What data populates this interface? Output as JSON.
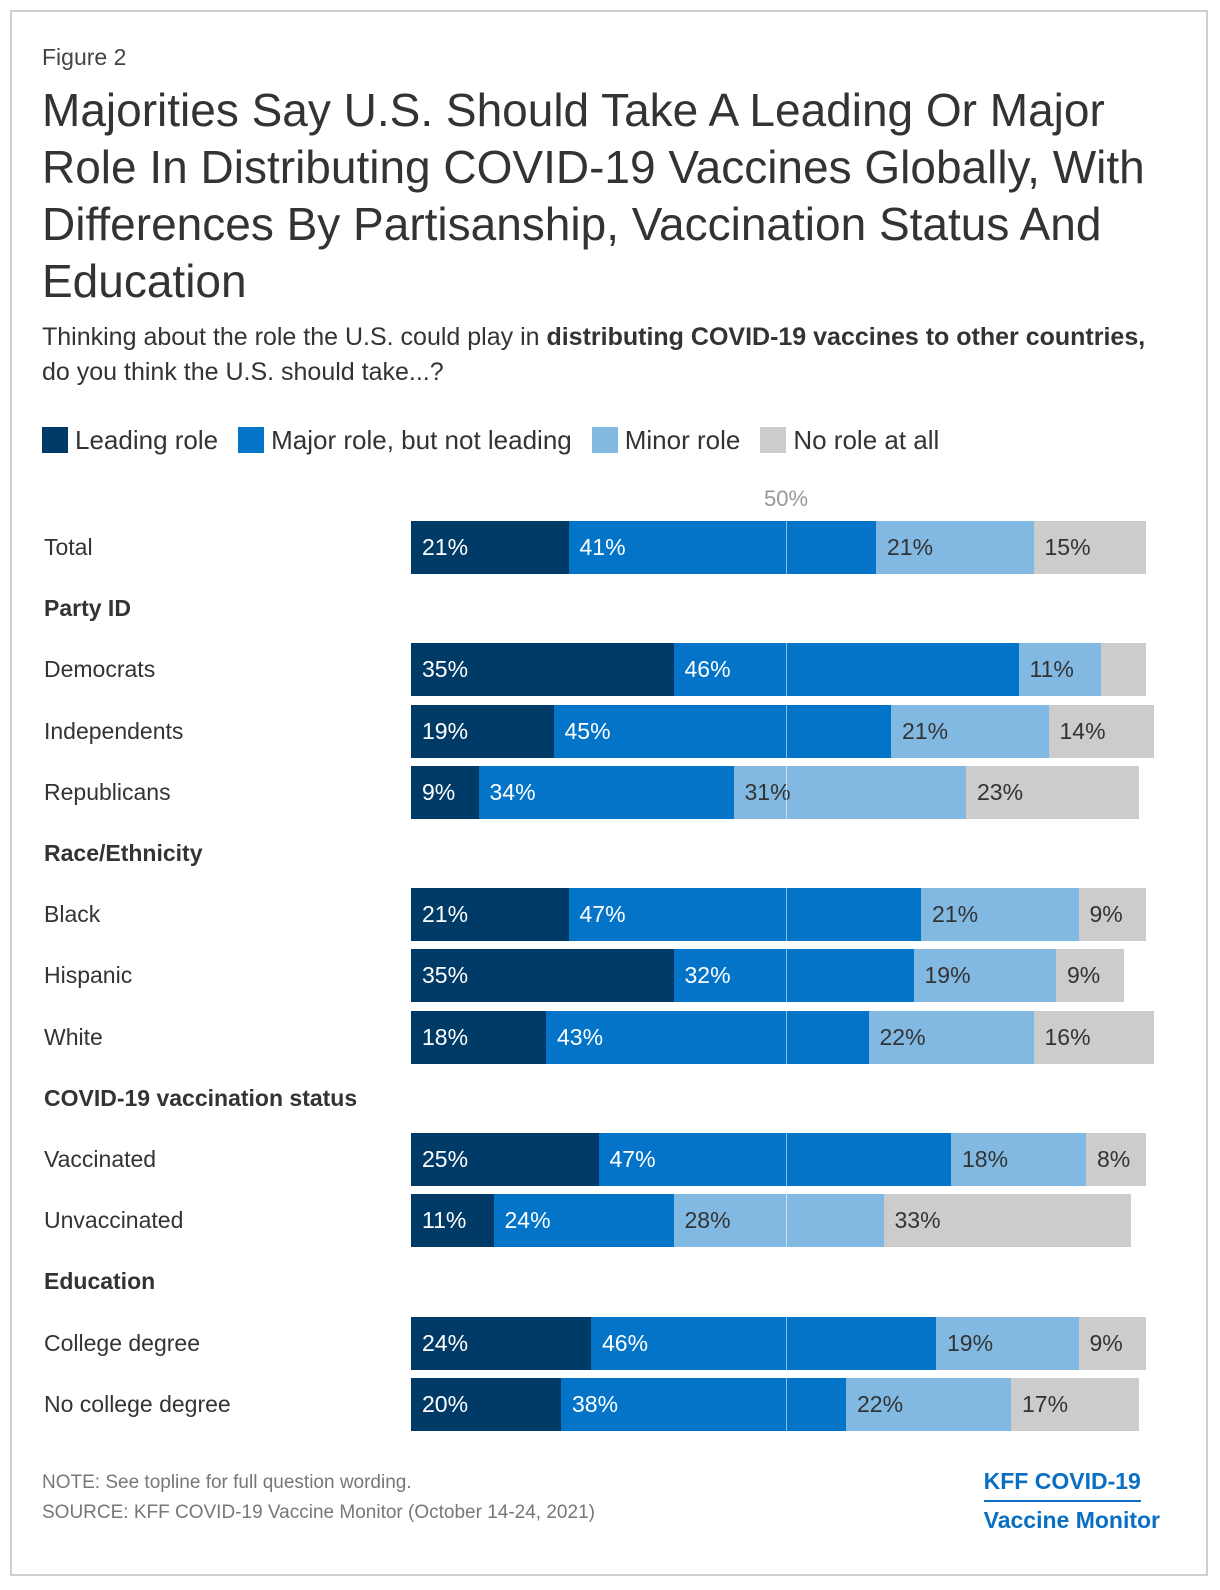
{
  "figure_label": "Figure 2",
  "title": "Majorities Say U.S. Should Take A Leading Or Major Role In Distributing COVID-19 Vaccines Globally, With Differences By Partisanship, Vaccination Status And Education",
  "subtitle": {
    "part1": "Thinking about the role the U.S. could play in ",
    "bold": "distributing COVID-19 vaccines to other countries,",
    "part2": " do you think the U.S. should take...?"
  },
  "colors": {
    "leading": "#003a66",
    "major": "#0474c8",
    "minor": "#81b9e3",
    "none": "#cccccc"
  },
  "chart_data": {
    "type": "bar",
    "orientation": "horizontal-stacked",
    "reference_line": {
      "value": 50,
      "label": "50%"
    },
    "xlim": [
      0,
      100
    ],
    "series": [
      {
        "key": "leading",
        "name": "Leading role"
      },
      {
        "key": "major",
        "name": "Major role, but not leading"
      },
      {
        "key": "minor",
        "name": "Minor role"
      },
      {
        "key": "none",
        "name": "No role at all"
      }
    ],
    "rows": [
      {
        "type": "data",
        "label": "Total",
        "values": [
          21,
          41,
          21,
          15
        ],
        "labels": [
          "21%",
          "41%",
          "21%",
          "15%"
        ]
      },
      {
        "type": "header",
        "label": "Party ID"
      },
      {
        "type": "data",
        "label": "Democrats",
        "values": [
          35,
          46,
          11,
          6
        ],
        "labels": [
          "35%",
          "46%",
          "11%",
          ""
        ]
      },
      {
        "type": "data",
        "label": "Independents",
        "values": [
          19,
          45,
          21,
          14
        ],
        "labels": [
          "19%",
          "45%",
          "21%",
          "14%"
        ]
      },
      {
        "type": "data",
        "label": "Republicans",
        "values": [
          9,
          34,
          31,
          23
        ],
        "labels": [
          "9%",
          "34%",
          "31%",
          "23%"
        ]
      },
      {
        "type": "header",
        "label": "Race/Ethnicity"
      },
      {
        "type": "data",
        "label": "Black",
        "values": [
          21,
          47,
          21,
          9
        ],
        "labels": [
          "21%",
          "47%",
          "21%",
          "9%"
        ]
      },
      {
        "type": "data",
        "label": "Hispanic",
        "values": [
          35,
          32,
          19,
          9
        ],
        "labels": [
          "35%",
          "32%",
          "19%",
          "9%"
        ]
      },
      {
        "type": "data",
        "label": "White",
        "values": [
          18,
          43,
          22,
          16
        ],
        "labels": [
          "18%",
          "43%",
          "22%",
          "16%"
        ]
      },
      {
        "type": "header",
        "label": "COVID-19 vaccination status"
      },
      {
        "type": "data",
        "label": "Vaccinated",
        "values": [
          25,
          47,
          18,
          8
        ],
        "labels": [
          "25%",
          "47%",
          "18%",
          "8%"
        ]
      },
      {
        "type": "data",
        "label": "Unvaccinated",
        "values": [
          11,
          24,
          28,
          33
        ],
        "labels": [
          "11%",
          "24%",
          "28%",
          "33%"
        ]
      },
      {
        "type": "header",
        "label": "Education"
      },
      {
        "type": "data",
        "label": "College degree",
        "values": [
          24,
          46,
          19,
          9
        ],
        "labels": [
          "24%",
          "46%",
          "19%",
          "9%"
        ]
      },
      {
        "type": "data",
        "label": "No college degree",
        "values": [
          20,
          38,
          22,
          17
        ],
        "labels": [
          "20%",
          "38%",
          "22%",
          "17%"
        ]
      }
    ]
  },
  "note": "NOTE: See topline for full question wording.",
  "source": "SOURCE: KFF COVID-19 Vaccine Monitor (October 14-24, 2021)",
  "brand": {
    "line1": "KFF COVID-19",
    "line2": "Vaccine Monitor"
  }
}
